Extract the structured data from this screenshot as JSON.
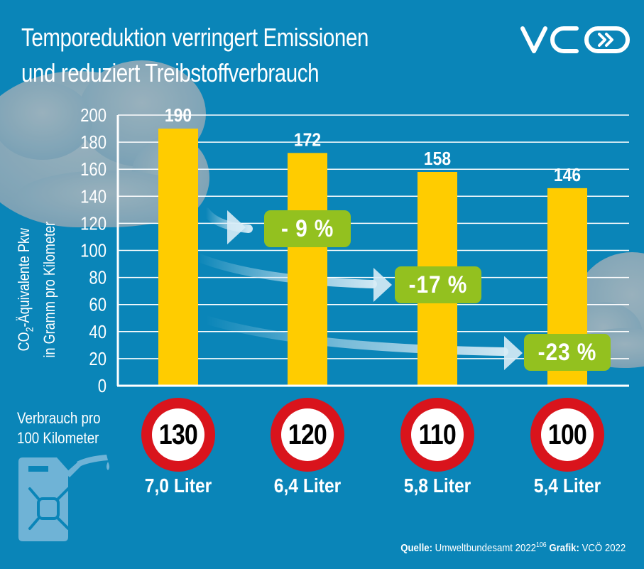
{
  "title": {
    "line1": "Temporeduktion verringert Emissionen",
    "line2": "und reduziert Treibstoffverbrauch"
  },
  "logo": {
    "text": "VCÖ",
    "icon": "vco-logo-icon"
  },
  "colors": {
    "background": "#0a85b8",
    "bar": "#ffcc00",
    "badge": "#93c11f",
    "sign_ring": "#d9141c",
    "cloud": "#a9b3bb",
    "arrow": "#cfe6f2"
  },
  "chart_data": {
    "type": "bar",
    "title": "Temporeduktion verringert Emissionen und reduziert Treibstoffverbrauch",
    "xlabel": "",
    "ylabel": "CO2-Äquivalente Pkw in Gramm pro Kilometer",
    "ylabel_line1_prefix": "CO",
    "ylabel_line1_sub": "2",
    "ylabel_line1_suffix": "-Äquivalente Pkw",
    "ylabel_line2": "in Gramm pro Kilometer",
    "ylim": [
      0,
      200
    ],
    "yticks": [
      0,
      20,
      40,
      60,
      80,
      100,
      120,
      140,
      160,
      180,
      200
    ],
    "grid": true,
    "categories": [
      "130",
      "120",
      "110",
      "100"
    ],
    "values": [
      190,
      172,
      158,
      146
    ],
    "data_labels": [
      "190",
      "172",
      "158",
      "146"
    ],
    "reductions": [
      {
        "from": "130",
        "to": "120",
        "label": "- 9 %"
      },
      {
        "from": "130",
        "to": "110",
        "label": "-17 %"
      },
      {
        "from": "130",
        "to": "100",
        "label": "-23 %"
      }
    ]
  },
  "consumption": {
    "label_line1": "Verbrauch pro",
    "label_line2": "100 Kilometer",
    "icon": "jerrycan-icon",
    "items": [
      {
        "speed": "130",
        "liters": "7,0 Liter"
      },
      {
        "speed": "120",
        "liters": "6,4 Liter"
      },
      {
        "speed": "110",
        "liters": "5,8 Liter"
      },
      {
        "speed": "100",
        "liters": "5,4 Liter"
      }
    ]
  },
  "source": {
    "source_label": "Quelle:",
    "source_text": "Umweltbundesamt 2022",
    "source_ref": "106",
    "graphic_label": "Grafik:",
    "graphic_text": "VCÖ 2022"
  }
}
